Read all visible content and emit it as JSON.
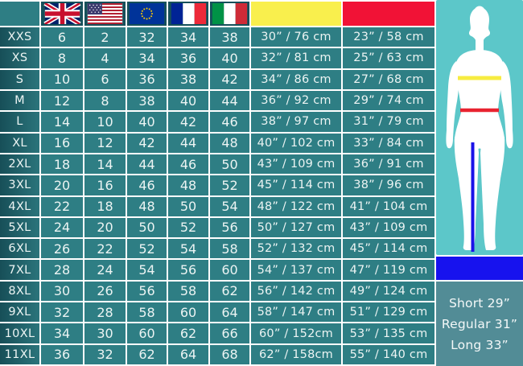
{
  "table": {
    "header": {
      "flag_icons": [
        "uk-flag-icon",
        "us-flag-icon",
        "eu-flag-icon",
        "france-flag-icon",
        "italy-flag-icon"
      ],
      "bust_header_color": "#f9ef4d",
      "waist_header_color": "#f11236"
    },
    "rows": [
      {
        "size": "XXS",
        "uk": "6",
        "us": "2",
        "eu": "32",
        "fr": "34",
        "it": "38",
        "bust": "30” / 76 cm",
        "waist": "23” / 58 cm"
      },
      {
        "size": "XS",
        "uk": "8",
        "us": "4",
        "eu": "34",
        "fr": "36",
        "it": "40",
        "bust": "32” / 81 cm",
        "waist": "25” / 63 cm"
      },
      {
        "size": "S",
        "uk": "10",
        "us": "6",
        "eu": "36",
        "fr": "38",
        "it": "42",
        "bust": "34” / 86 cm",
        "waist": "27” / 68 cm"
      },
      {
        "size": "M",
        "uk": "12",
        "us": "8",
        "eu": "38",
        "fr": "40",
        "it": "44",
        "bust": "36” / 92 cm",
        "waist": "29” / 74 cm"
      },
      {
        "size": "L",
        "uk": "14",
        "us": "10",
        "eu": "40",
        "fr": "42",
        "it": "46",
        "bust": "38” / 97 cm",
        "waist": "31” / 79 cm"
      },
      {
        "size": "XL",
        "uk": "16",
        "us": "12",
        "eu": "42",
        "fr": "44",
        "it": "48",
        "bust": "40” / 102 cm",
        "waist": "33” / 84 cm"
      },
      {
        "size": "2XL",
        "uk": "18",
        "us": "14",
        "eu": "44",
        "fr": "46",
        "it": "50",
        "bust": "43” / 109 cm",
        "waist": "36” / 91 cm"
      },
      {
        "size": "3XL",
        "uk": "20",
        "us": "16",
        "eu": "46",
        "fr": "48",
        "it": "52",
        "bust": "45” / 114 cm",
        "waist": "38” / 96 cm"
      },
      {
        "size": "4XL",
        "uk": "22",
        "us": "18",
        "eu": "48",
        "fr": "50",
        "it": "54",
        "bust": "48” / 122 cm",
        "waist": "41” / 104 cm"
      },
      {
        "size": "5XL",
        "uk": "24",
        "us": "20",
        "eu": "50",
        "fr": "52",
        "it": "56",
        "bust": "50” / 127 cm",
        "waist": "43” / 109 cm"
      },
      {
        "size": "6XL",
        "uk": "26",
        "us": "22",
        "eu": "52",
        "fr": "54",
        "it": "58",
        "bust": "52” / 132 cm",
        "waist": "45” / 114 cm"
      },
      {
        "size": "7XL",
        "uk": "28",
        "us": "24",
        "eu": "54",
        "fr": "56",
        "it": "60",
        "bust": "54” / 137 cm",
        "waist": "47” / 119 cm"
      },
      {
        "size": "8XL",
        "uk": "30",
        "us": "26",
        "eu": "56",
        "fr": "58",
        "it": "62",
        "bust": "56” / 142 cm",
        "waist": "49” / 124 cm"
      },
      {
        "size": "9XL",
        "uk": "32",
        "us": "28",
        "eu": "58",
        "fr": "60",
        "it": "64",
        "bust": "58” / 147 cm",
        "waist": "51” / 129 cm"
      },
      {
        "size": "10XL",
        "uk": "34",
        "us": "30",
        "eu": "60",
        "fr": "62",
        "it": "66",
        "bust": "60” / 152cm",
        "waist": "53” / 135 cm"
      },
      {
        "size": "11XL",
        "uk": "36",
        "us": "32",
        "eu": "62",
        "fr": "64",
        "it": "68",
        "bust": "62” / 158cm",
        "waist": "55” / 140 cm"
      }
    ]
  },
  "figure": {
    "bust_line_color": "#f7ec40",
    "waist_line_color": "#e82330",
    "inseam_line_color": "#1a12e8",
    "background_color": "#5cc7c9",
    "silhouette_color": "#ffffff"
  },
  "leg_lengths": {
    "lines": [
      "Short 29”",
      "Regular 31”",
      "Long 33”"
    ]
  },
  "colors": {
    "cell_teal": "#2e7e84",
    "header_dark_teal": "#15505a",
    "label_gradient_start": "#174f58",
    "label_gradient_end": "#2b747b",
    "bust_yellow": "#f9ef4d",
    "waist_red": "#f11236",
    "inseam_blue_bar": "#1712ee",
    "lengths_panel": "#528c96",
    "grid_line": "#ffffff",
    "text": "#ecf4f3"
  }
}
